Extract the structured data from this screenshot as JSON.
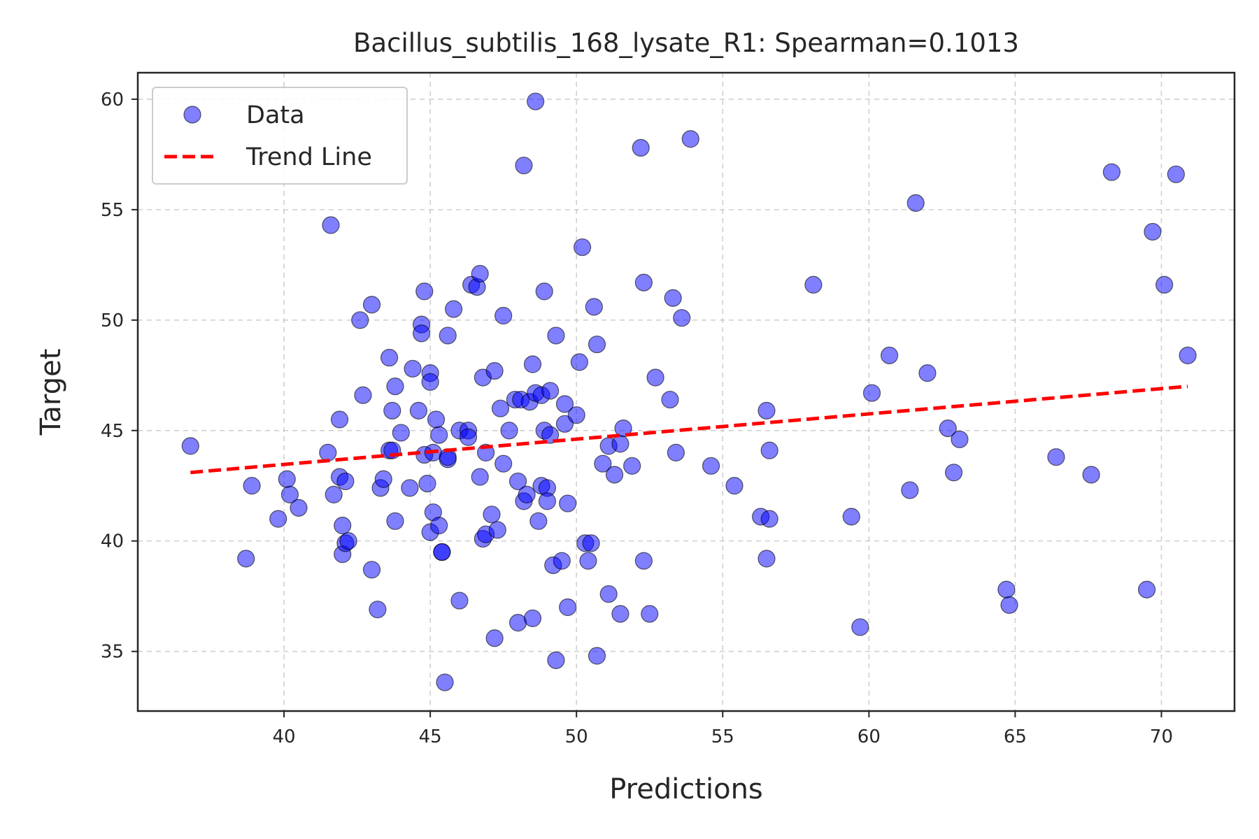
{
  "chart_data": {
    "type": "scatter",
    "title": "Bacillus_subtilis_168_lysate_R1: Spearman=0.1013",
    "xlabel": "Predictions",
    "ylabel": "Target",
    "xlim": [
      35.0,
      72.5
    ],
    "ylim": [
      32.3,
      61.2
    ],
    "xticks": [
      40,
      45,
      50,
      55,
      60,
      65,
      70
    ],
    "yticks": [
      35,
      40,
      45,
      50,
      55,
      60
    ],
    "grid": true,
    "legend_position": "upper-left",
    "series": [
      {
        "name": "Data",
        "kind": "scatter",
        "color": "#0000ff",
        "points": [
          [
            36.8,
            44.3
          ],
          [
            38.7,
            39.2
          ],
          [
            38.9,
            42.5
          ],
          [
            39.8,
            41.0
          ],
          [
            40.1,
            42.8
          ],
          [
            40.2,
            42.1
          ],
          [
            40.5,
            41.5
          ],
          [
            41.5,
            44.0
          ],
          [
            41.6,
            54.3
          ],
          [
            41.7,
            42.1
          ],
          [
            41.9,
            45.5
          ],
          [
            41.9,
            42.9
          ],
          [
            42.0,
            40.7
          ],
          [
            42.0,
            39.4
          ],
          [
            42.1,
            39.9
          ],
          [
            42.1,
            42.7
          ],
          [
            42.2,
            40.0
          ],
          [
            42.6,
            50.0
          ],
          [
            42.7,
            46.6
          ],
          [
            43.0,
            38.7
          ],
          [
            43.0,
            50.7
          ],
          [
            43.2,
            36.9
          ],
          [
            43.3,
            42.4
          ],
          [
            43.4,
            42.8
          ],
          [
            43.6,
            48.3
          ],
          [
            43.6,
            44.1
          ],
          [
            43.7,
            44.1
          ],
          [
            43.7,
            45.9
          ],
          [
            43.8,
            40.9
          ],
          [
            43.8,
            47.0
          ],
          [
            44.0,
            44.9
          ],
          [
            44.3,
            42.4
          ],
          [
            44.4,
            47.8
          ],
          [
            44.6,
            45.9
          ],
          [
            44.7,
            49.8
          ],
          [
            44.7,
            49.4
          ],
          [
            44.8,
            51.3
          ],
          [
            44.8,
            43.9
          ],
          [
            44.9,
            42.6
          ],
          [
            45.0,
            47.6
          ],
          [
            45.0,
            47.2
          ],
          [
            45.0,
            40.4
          ],
          [
            45.1,
            44.0
          ],
          [
            45.1,
            41.3
          ],
          [
            45.2,
            45.5
          ],
          [
            45.3,
            40.7
          ],
          [
            45.3,
            44.8
          ],
          [
            45.4,
            39.5
          ],
          [
            45.4,
            39.5
          ],
          [
            45.5,
            33.6
          ],
          [
            45.6,
            43.7
          ],
          [
            45.6,
            43.8
          ],
          [
            45.6,
            49.3
          ],
          [
            45.8,
            50.5
          ],
          [
            46.0,
            37.3
          ],
          [
            46.0,
            45.0
          ],
          [
            46.3,
            45.0
          ],
          [
            46.3,
            44.7
          ],
          [
            46.4,
            51.6
          ],
          [
            46.6,
            51.5
          ],
          [
            46.7,
            52.1
          ],
          [
            46.7,
            42.9
          ],
          [
            46.8,
            47.4
          ],
          [
            46.8,
            40.1
          ],
          [
            46.9,
            40.3
          ],
          [
            46.9,
            44.0
          ],
          [
            47.1,
            41.2
          ],
          [
            47.2,
            35.6
          ],
          [
            47.2,
            47.7
          ],
          [
            47.3,
            40.5
          ],
          [
            47.4,
            46.0
          ],
          [
            47.5,
            50.2
          ],
          [
            47.5,
            43.5
          ],
          [
            47.7,
            45.0
          ],
          [
            47.9,
            46.4
          ],
          [
            48.0,
            42.7
          ],
          [
            48.0,
            36.3
          ],
          [
            48.1,
            46.4
          ],
          [
            48.2,
            57.0
          ],
          [
            48.2,
            41.8
          ],
          [
            48.3,
            42.1
          ],
          [
            48.4,
            46.3
          ],
          [
            48.5,
            48.0
          ],
          [
            48.5,
            36.5
          ],
          [
            48.6,
            59.9
          ],
          [
            48.6,
            46.7
          ],
          [
            48.7,
            40.9
          ],
          [
            48.8,
            42.5
          ],
          [
            48.8,
            46.6
          ],
          [
            48.9,
            51.3
          ],
          [
            48.9,
            45.0
          ],
          [
            49.0,
            42.4
          ],
          [
            49.0,
            41.8
          ],
          [
            49.1,
            44.8
          ],
          [
            49.1,
            46.8
          ],
          [
            49.2,
            38.9
          ],
          [
            49.3,
            49.3
          ],
          [
            49.3,
            34.6
          ],
          [
            49.5,
            39.1
          ],
          [
            49.6,
            46.2
          ],
          [
            49.6,
            45.3
          ],
          [
            49.7,
            37.0
          ],
          [
            49.7,
            41.7
          ],
          [
            50.0,
            45.7
          ],
          [
            50.1,
            48.1
          ],
          [
            50.2,
            53.3
          ],
          [
            50.3,
            39.9
          ],
          [
            50.4,
            39.1
          ],
          [
            50.5,
            39.9
          ],
          [
            50.6,
            50.6
          ],
          [
            50.7,
            48.9
          ],
          [
            50.7,
            34.8
          ],
          [
            50.9,
            43.5
          ],
          [
            51.1,
            37.6
          ],
          [
            51.1,
            44.3
          ],
          [
            51.3,
            43.0
          ],
          [
            51.5,
            36.7
          ],
          [
            51.5,
            44.4
          ],
          [
            51.6,
            45.1
          ],
          [
            51.9,
            43.4
          ],
          [
            52.2,
            57.8
          ],
          [
            52.3,
            39.1
          ],
          [
            52.3,
            51.7
          ],
          [
            52.5,
            36.7
          ],
          [
            52.7,
            47.4
          ],
          [
            53.2,
            46.4
          ],
          [
            53.3,
            51.0
          ],
          [
            53.4,
            44.0
          ],
          [
            53.6,
            50.1
          ],
          [
            53.9,
            58.2
          ],
          [
            54.6,
            43.4
          ],
          [
            55.4,
            42.5
          ],
          [
            56.3,
            41.1
          ],
          [
            56.5,
            45.9
          ],
          [
            56.5,
            39.2
          ],
          [
            56.6,
            41.0
          ],
          [
            56.6,
            44.1
          ],
          [
            58.1,
            51.6
          ],
          [
            59.4,
            41.1
          ],
          [
            59.7,
            36.1
          ],
          [
            60.1,
            46.7
          ],
          [
            60.7,
            48.4
          ],
          [
            61.4,
            42.3
          ],
          [
            61.6,
            55.3
          ],
          [
            62.0,
            47.6
          ],
          [
            62.7,
            45.1
          ],
          [
            62.9,
            43.1
          ],
          [
            63.1,
            44.6
          ],
          [
            64.7,
            37.8
          ],
          [
            64.8,
            37.1
          ],
          [
            66.4,
            43.8
          ],
          [
            67.6,
            43.0
          ],
          [
            68.3,
            56.7
          ],
          [
            69.5,
            37.8
          ],
          [
            69.7,
            54.0
          ],
          [
            70.1,
            51.6
          ],
          [
            70.5,
            56.6
          ],
          [
            70.9,
            48.4
          ]
        ]
      },
      {
        "name": "Trend Line",
        "kind": "line",
        "style": "dashed",
        "color": "#ff0000",
        "points": [
          [
            36.8,
            43.1
          ],
          [
            70.9,
            47.0
          ]
        ]
      }
    ]
  }
}
